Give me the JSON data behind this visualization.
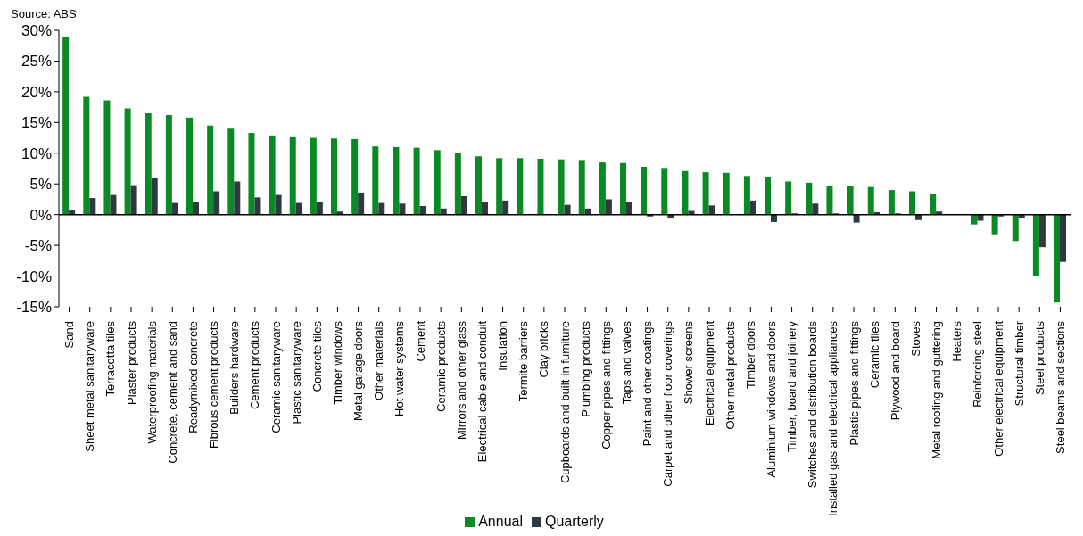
{
  "chart_data": {
    "type": "bar",
    "annotations": [
      "Source: ABS"
    ],
    "categories": [
      "Sand",
      "Sheet metal sanitaryware",
      "Terracotta tiles",
      "Plaster products",
      "Waterproofing materials",
      "Concrete, cement and sand",
      "Readymixed concrete",
      "Fibrous cement products",
      "Builders hardware",
      "Cement products",
      "Ceramic sanitaryware",
      "Plastic sanitaryware",
      "Concrete tiles",
      "Timber windows",
      "Metal garage doors",
      "Other materials",
      "Hot water systems",
      "Cement",
      "Ceramic products",
      "Mirrors and other glass",
      "Electrical cable and conduit",
      "Insulation",
      "Termite barriers",
      "Clay bricks",
      "Cupboards and built-in furniture",
      "Plumbing products",
      "Copper pipes and fittings",
      "Taps and valves",
      "Paint and other coatings",
      "Carpet and other floor coverings",
      "Shower screens",
      "Electrical equipment",
      "Other metal products",
      "Timber doors",
      "Aluminium windows and doors",
      "Timber, board and joinery",
      "Switches and distribution boards",
      "Installed gas and electrical appliances",
      "Plastic pipes and fittings",
      "Ceramic tiles",
      "Plywood and board",
      "Stoves",
      "Metal roofing and guttering",
      "Heaters",
      "Reinforcing steel",
      "Other electrical equipment",
      "Structural timber",
      "Steel products",
      "Steel beams and sections"
    ],
    "series": [
      {
        "name": "Annual",
        "color": "#0a8a24",
        "values": [
          29,
          19.2,
          18.6,
          17.3,
          16.5,
          16.2,
          15.8,
          14.5,
          14,
          13.3,
          12.9,
          12.6,
          12.5,
          12.4,
          12.3,
          11.1,
          11,
          10.9,
          10.5,
          10,
          9.5,
          9.2,
          9.2,
          9.1,
          9,
          8.9,
          8.5,
          8.4,
          7.8,
          7.6,
          7.1,
          6.9,
          6.8,
          6.3,
          6.1,
          5.4,
          5.2,
          4.7,
          4.6,
          4.5,
          4,
          3.8,
          3.4,
          0,
          -1.6,
          -3.2,
          -4.3,
          -10,
          -14.3
        ]
      },
      {
        "name": "Quarterly",
        "color": "#2d3a40",
        "values": [
          0.8,
          2.7,
          3.2,
          4.8,
          5.9,
          1.9,
          2.1,
          3.8,
          5.4,
          2.8,
          3.2,
          1.9,
          2.1,
          0.5,
          3.6,
          1.9,
          1.8,
          1.4,
          1,
          3,
          2,
          2.3,
          0,
          0.1,
          1.6,
          1,
          2.5,
          2,
          -0.3,
          -0.5,
          0.6,
          1.5,
          0.1,
          2.3,
          -1.2,
          0.2,
          1.8,
          0.2,
          -1.3,
          0.4,
          0.2,
          -0.9,
          0.5,
          0,
          -1,
          -0.3,
          -0.5,
          -5.3,
          -7.7
        ]
      }
    ],
    "ylim": [
      -15,
      30
    ],
    "yticks": [
      {
        "value": -15,
        "label": "-15%"
      },
      {
        "value": -10,
        "label": "-10%"
      },
      {
        "value": -5,
        "label": "-5%"
      },
      {
        "value": 0,
        "label": "0%"
      },
      {
        "value": 5,
        "label": "5%"
      },
      {
        "value": 10,
        "label": "10%"
      },
      {
        "value": 15,
        "label": "15%"
      },
      {
        "value": 20,
        "label": "20%"
      },
      {
        "value": 25,
        "label": "25%"
      },
      {
        "value": 30,
        "label": "30%"
      }
    ],
    "legend": "bottom"
  }
}
